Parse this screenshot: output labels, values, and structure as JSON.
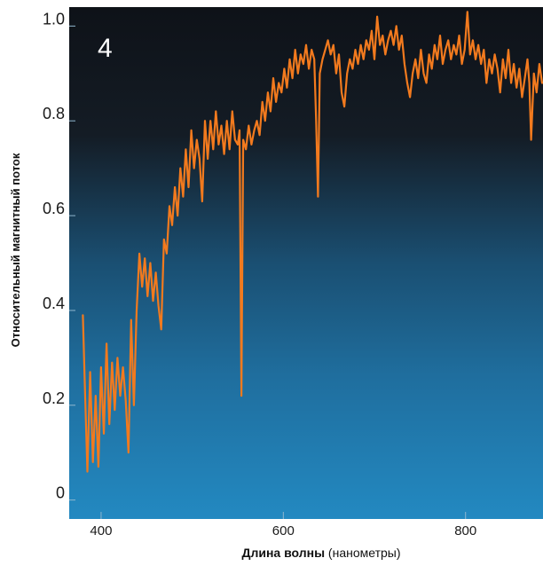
{
  "chart_data": {
    "type": "line",
    "panel_label": "4",
    "xlabel_bold": "Длина волны",
    "xlabel_normal": " (нанометры)",
    "ylabel": "Относительный магнитный поток",
    "xlim": [
      365,
      885
    ],
    "ylim": [
      -0.04,
      1.04
    ],
    "x_ticks": [
      400,
      600,
      800
    ],
    "x_tick_labels": [
      "400",
      "600",
      "800"
    ],
    "y_ticks": [
      0,
      0.2,
      0.4,
      0.6,
      0.8,
      1.0
    ],
    "y_tick_labels": [
      "0",
      "0.2",
      "0.4",
      "0.6",
      "0.8",
      "1.0"
    ],
    "grid": false,
    "series": [
      {
        "color": "#f27a1e",
        "x": [
          380,
          382,
          385,
          388,
          391,
          394,
          397,
          400,
          403,
          406,
          409,
          412,
          415,
          418,
          421,
          424,
          427,
          430,
          433,
          436,
          439,
          442,
          445,
          448,
          451,
          454,
          457,
          460,
          463,
          466,
          469,
          472,
          475,
          478,
          481,
          484,
          487,
          490,
          493,
          496,
          499,
          502,
          505,
          508,
          511,
          514,
          517,
          520,
          523,
          526,
          529,
          532,
          535,
          538,
          541,
          544,
          547,
          550,
          552,
          554,
          556,
          559,
          562,
          565,
          568,
          571,
          574,
          577,
          580,
          583,
          586,
          589,
          592,
          595,
          598,
          601,
          604,
          607,
          610,
          613,
          616,
          619,
          622,
          625,
          628,
          631,
          634,
          636,
          638,
          640,
          643,
          646,
          649,
          652,
          655,
          658,
          661,
          664,
          667,
          670,
          673,
          676,
          679,
          682,
          685,
          688,
          691,
          694,
          697,
          700,
          703,
          706,
          709,
          712,
          715,
          718,
          721,
          724,
          727,
          730,
          733,
          736,
          739,
          742,
          745,
          748,
          751,
          754,
          757,
          760,
          763,
          766,
          769,
          772,
          775,
          778,
          781,
          784,
          787,
          790,
          793,
          796,
          799,
          802,
          805,
          808,
          811,
          814,
          817,
          820,
          823,
          826,
          829,
          832,
          835,
          838,
          841,
          844,
          847,
          850,
          853,
          856,
          859,
          862,
          865,
          868,
          870,
          872,
          875,
          878,
          881,
          884
        ],
        "y": [
          0.39,
          0.25,
          0.06,
          0.27,
          0.08,
          0.22,
          0.07,
          0.28,
          0.14,
          0.33,
          0.16,
          0.29,
          0.19,
          0.3,
          0.22,
          0.28,
          0.21,
          0.1,
          0.38,
          0.2,
          0.4,
          0.52,
          0.45,
          0.51,
          0.43,
          0.5,
          0.42,
          0.48,
          0.41,
          0.36,
          0.55,
          0.52,
          0.62,
          0.58,
          0.66,
          0.6,
          0.7,
          0.64,
          0.74,
          0.66,
          0.78,
          0.7,
          0.76,
          0.72,
          0.63,
          0.8,
          0.72,
          0.8,
          0.74,
          0.82,
          0.75,
          0.79,
          0.73,
          0.8,
          0.74,
          0.82,
          0.76,
          0.75,
          0.78,
          0.22,
          0.76,
          0.74,
          0.79,
          0.75,
          0.78,
          0.8,
          0.77,
          0.84,
          0.8,
          0.86,
          0.82,
          0.89,
          0.84,
          0.88,
          0.86,
          0.91,
          0.87,
          0.93,
          0.89,
          0.95,
          0.9,
          0.94,
          0.92,
          0.96,
          0.91,
          0.95,
          0.93,
          0.8,
          0.64,
          0.9,
          0.93,
          0.95,
          0.97,
          0.94,
          0.96,
          0.9,
          0.94,
          0.86,
          0.83,
          0.9,
          0.93,
          0.91,
          0.95,
          0.92,
          0.96,
          0.93,
          0.97,
          0.95,
          0.99,
          0.93,
          1.02,
          0.96,
          0.98,
          0.94,
          0.97,
          0.99,
          0.96,
          1.0,
          0.95,
          0.98,
          0.92,
          0.88,
          0.85,
          0.9,
          0.93,
          0.89,
          0.95,
          0.9,
          0.88,
          0.94,
          0.91,
          0.96,
          0.93,
          0.98,
          0.92,
          0.95,
          0.97,
          0.93,
          0.96,
          0.94,
          0.98,
          0.92,
          0.95,
          1.03,
          0.94,
          0.97,
          0.93,
          0.96,
          0.92,
          0.95,
          0.88,
          0.93,
          0.9,
          0.94,
          0.91,
          0.86,
          0.93,
          0.89,
          0.95,
          0.88,
          0.92,
          0.87,
          0.91,
          0.85,
          0.89,
          0.93,
          0.88,
          0.76,
          0.9,
          0.86,
          0.92,
          0.88
        ]
      }
    ]
  }
}
